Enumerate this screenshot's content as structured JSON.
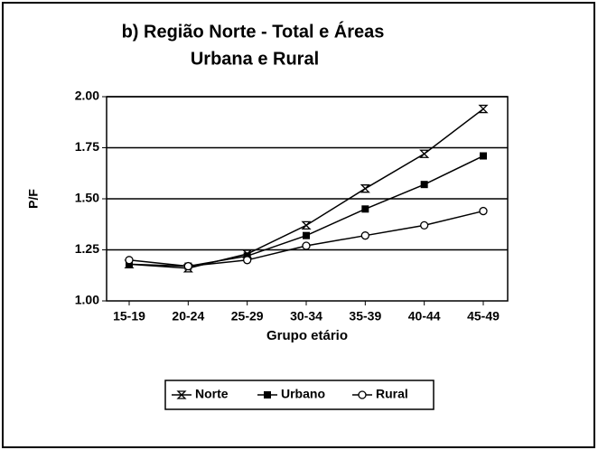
{
  "chart_data": {
    "type": "line",
    "title": [
      "b)  Região Norte - Total e   Áreas",
      "Urbana e   Rural"
    ],
    "y_label": "P/F",
    "x_label": "Grupo etário",
    "categories": [
      "15-19",
      "20-24",
      "25-29",
      "30-34",
      "35-39",
      "40-44",
      "45-49"
    ],
    "series": [
      {
        "name": "Norte",
        "color": "#000000",
        "marker": "x",
        "values": [
          1.18,
          1.16,
          1.23,
          1.37,
          1.55,
          1.72,
          1.94
        ]
      },
      {
        "name": "Urbano",
        "color": "#000000",
        "marker": "square",
        "values": [
          1.18,
          1.17,
          1.22,
          1.32,
          1.45,
          1.57,
          1.71
        ]
      },
      {
        "name": "Rural",
        "color": "#000000",
        "marker": "circle",
        "values": [
          1.2,
          1.17,
          1.2,
          1.27,
          1.32,
          1.37,
          1.44
        ]
      }
    ],
    "ylim": [
      1,
      2
    ],
    "yticks": [
      {
        "value": 1,
        "label": "1.00"
      },
      {
        "value": 1.25,
        "label": "1.25"
      },
      {
        "value": 1.5,
        "label": "1.50"
      },
      {
        "value": 1.75,
        "label": "1.75"
      },
      {
        "value": 2,
        "label": "2.00"
      }
    ],
    "grid": true,
    "legend": "bottom"
  }
}
